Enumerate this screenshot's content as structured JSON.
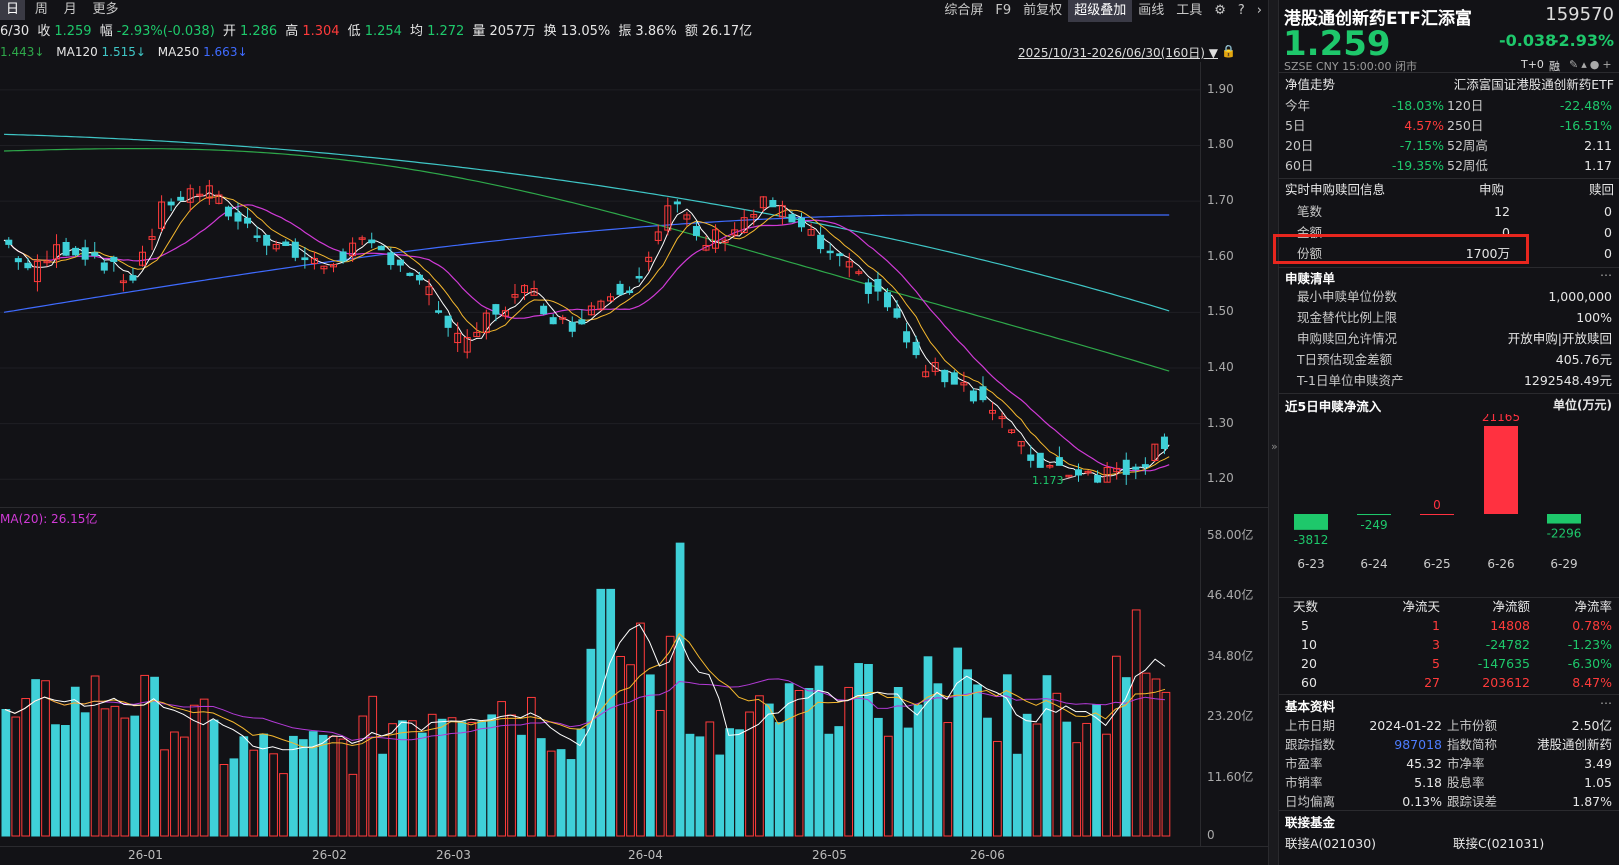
{
  "toolbar": {
    "periods": [
      "日",
      "周",
      "月",
      "更多"
    ],
    "tools": [
      "综合屏",
      "F9",
      "前复权",
      "超级叠加",
      "画线",
      "工具"
    ],
    "active_tool": "超级叠加"
  },
  "quote": {
    "date": "6/30",
    "close_label": "收",
    "close": "1.259",
    "change_label": "幅",
    "change": "-2.93%(-0.038)",
    "open_label": "开",
    "open": "1.286",
    "high_label": "高",
    "high": "1.304",
    "low_label": "低",
    "low": "1.254",
    "avg_label": "均",
    "avg": "1.272",
    "vol_label": "量",
    "vol": "2057万",
    "turnover_label": "换",
    "turnover": "13.05%",
    "amp_label": "振",
    "amp": "3.86%",
    "amount_label": "额",
    "amount": "26.17亿"
  },
  "ma": {
    "ma60": "1.443↓",
    "ma120_label": "MA120",
    "ma120": "1.515↓",
    "ma250_label": "MA250",
    "ma250": "1.663↓"
  },
  "range": "2025/10/31-2026/06/30(160日)",
  "price_axis": [
    "1.90",
    "1.80",
    "1.70",
    "1.60",
    "1.50",
    "1.40",
    "1.30",
    "1.20"
  ],
  "low_marker": "1.173",
  "vol_ma_label": "MA(20): 26.15亿",
  "vol_axis": [
    "58.00亿",
    "46.40亿",
    "34.80亿",
    "23.20亿",
    "11.60亿",
    "0"
  ],
  "months": [
    "26-01",
    "26-02",
    "26-03",
    "26-04",
    "26-05",
    "26-06"
  ],
  "colors": {
    "up": "#ff3b3b",
    "down": "#3fd0d8",
    "ma5": "#ffffff",
    "ma10": "#f5b82e",
    "ma20": "#d03ad6",
    "ma60": "#2ea84a",
    "ma120": "#3fc6c6",
    "ma250": "#3f6bff",
    "vol_ma": "#b23ad6"
  },
  "fund": {
    "name": "港股通创新药ETF汇添富",
    "code": "159570",
    "price": "1.259",
    "change": "-0.038",
    "change_pct": "-2.93%",
    "meta": "SZSE  CNY  15:00:00  闭市",
    "tplus": "T+0",
    "tplus_label": "融"
  },
  "nav": {
    "title": "净值走势",
    "index_name": "汇添富国证港股通创新药ETF",
    "rows": [
      {
        "l1": "今年",
        "v1": "-18.03%",
        "l2": "120日",
        "v2": "-22.48%"
      },
      {
        "l1": "5日",
        "v1": "4.57%",
        "l2": "250日",
        "v2": "-16.51%"
      },
      {
        "l1": "20日",
        "v1": "-7.15%",
        "l2": "52周高",
        "v2": "2.11"
      },
      {
        "l1": "60日",
        "v1": "-19.35%",
        "l2": "52周低",
        "v2": "1.17"
      }
    ]
  },
  "realtime": {
    "title": "实时申购赎回信息",
    "col1": "申购",
    "col2": "赎回",
    "rows": [
      {
        "label": "笔数",
        "buy": "12",
        "sell": "0"
      },
      {
        "label": "金额",
        "buy": "0",
        "sell": "0"
      },
      {
        "label": "份额",
        "buy": "1700万",
        "sell": "0"
      }
    ]
  },
  "subscribe": {
    "title": "申赎清单",
    "rows": [
      {
        "label": "最小申赎单位份数",
        "value": "1,000,000"
      },
      {
        "label": "现金替代比例上限",
        "value": "100%"
      },
      {
        "label": "申购赎回允许情况",
        "value": "开放申购|开放赎回"
      },
      {
        "label": "T日预估现金差额",
        "value": "405.76元"
      },
      {
        "label": "T-1日单位申赎资产",
        "value": "1292548.49元"
      }
    ]
  },
  "flow": {
    "title": "近5日申赎净流入",
    "unit": "单位(万元)",
    "days": [
      "6-23",
      "6-24",
      "6-25",
      "6-26",
      "6-29"
    ],
    "values": [
      -3812,
      -249,
      0,
      21165,
      -2296
    ],
    "labels": [
      "-3812",
      "-249",
      "0",
      "21165",
      "-2296"
    ]
  },
  "flow_table": {
    "headers": [
      "天数",
      "净流天",
      "净流额",
      "净流率"
    ],
    "rows": [
      {
        "d": "5",
        "n": "1",
        "amt": "14808",
        "rate": "0.78%"
      },
      {
        "d": "10",
        "n": "3",
        "amt": "-24782",
        "rate": "-1.23%"
      },
      {
        "d": "20",
        "n": "5",
        "amt": "-147635",
        "rate": "-6.30%"
      },
      {
        "d": "60",
        "n": "27",
        "amt": "203612",
        "rate": "8.47%"
      }
    ]
  },
  "basic": {
    "title": "基本资料",
    "rows": [
      {
        "l1": "上市日期",
        "v1": "2024-01-22",
        "l2": "上市份额",
        "v2": "2.50亿"
      },
      {
        "l1": "跟踪指数",
        "v1": "987018",
        "l2": "指数简称",
        "v2": "港股通创新药"
      },
      {
        "l1": "市盈率",
        "v1": "45.32",
        "l2": "市净率",
        "v2": "3.49"
      },
      {
        "l1": "市销率",
        "v1": "5.18",
        "l2": "股息率",
        "v2": "1.05"
      },
      {
        "l1": "日均偏离",
        "v1": "0.13%",
        "l2": "跟踪误差",
        "v2": "1.87%"
      }
    ]
  },
  "linked": {
    "title": "联接基金",
    "a": "联接A(021030)",
    "c": "联接C(021031)"
  }
}
